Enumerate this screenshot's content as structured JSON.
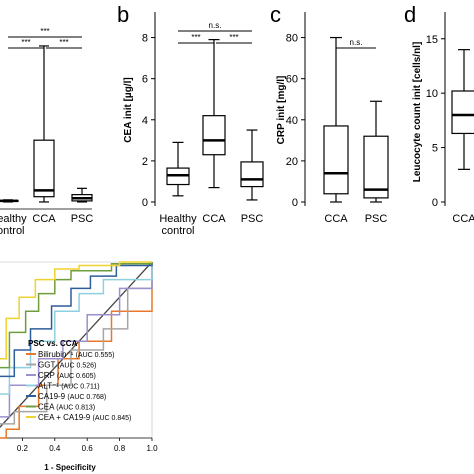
{
  "panels": {
    "a": {
      "x_labels": [
        "Healthy\ncontrol",
        "CCA",
        "PSC"
      ],
      "significance": [
        "***",
        "***",
        "***"
      ],
      "boxes": [
        {
          "group": "Healthy control",
          "whisker_low": 0.1,
          "q1": 0.15,
          "median": 0.2,
          "q3": 0.25,
          "whisker_high": 0.3
        },
        {
          "group": "CCA",
          "whisker_low": 0.1,
          "q1": 0.6,
          "median": 1.2,
          "q3": 6.0,
          "whisker_high": 15.0
        },
        {
          "group": "PSC",
          "whisker_low": 0.1,
          "q1": 0.2,
          "median": 0.45,
          "q3": 0.8,
          "whisker_high": 1.4
        }
      ]
    },
    "b": {
      "letter": "b",
      "ylabel": "CEA init [µg/l]",
      "y_ticks": [
        "0",
        "2",
        "4",
        "6",
        "8"
      ],
      "x_labels": [
        "Healthy\ncontrol",
        "CCA",
        "PSC"
      ],
      "significance": [
        "n.s.",
        "***",
        "***"
      ],
      "boxes": [
        {
          "group": "Healthy control",
          "whisker_low": 0.3,
          "q1": 0.85,
          "median": 1.3,
          "q3": 1.65,
          "whisker_high": 2.9
        },
        {
          "group": "CCA",
          "whisker_low": 0.7,
          "q1": 2.3,
          "median": 3.0,
          "q3": 4.2,
          "whisker_high": 7.9
        },
        {
          "group": "PSC",
          "whisker_low": 0.1,
          "q1": 0.75,
          "median": 1.1,
          "q3": 1.95,
          "whisker_high": 3.5
        }
      ]
    },
    "c": {
      "letter": "c",
      "ylabel": "CRP init [mg/l]",
      "y_ticks": [
        "0",
        "20",
        "40",
        "60",
        "80"
      ],
      "x_labels": [
        "CCA",
        "PSC"
      ],
      "significance": [
        "n.s."
      ],
      "boxes": [
        {
          "group": "CCA",
          "whisker_low": 0,
          "q1": 4,
          "median": 14,
          "q3": 37,
          "whisker_high": 80
        },
        {
          "group": "PSC",
          "whisker_low": 0,
          "q1": 2,
          "median": 6,
          "q3": 32,
          "whisker_high": 49
        }
      ]
    },
    "d": {
      "letter": "d",
      "ylabel": "Leucocyte count init [cells/nl]",
      "y_ticks": [
        "0",
        "5",
        "10",
        "15"
      ],
      "x_labels": [
        "CCA"
      ],
      "boxes": [
        {
          "group": "CCA",
          "whisker_low": 3.0,
          "q1": 6.3,
          "median": 8.0,
          "q3": 10.2,
          "whisker_high": 14.0
        }
      ]
    }
  },
  "roc": {
    "xlabel": "1 - Specificity",
    "x_ticks": [
      "0.2",
      "0.4",
      "0.6",
      "0.8",
      "1.0"
    ],
    "legend_title": "PSC vs. CCA",
    "colors": {
      "bilirubin": "#e8782a",
      "ggt": "#a6a6a6",
      "crp": "#9c8fd0",
      "alt": "#8fd0e0",
      "ca199": "#2e5d9c",
      "cea": "#6f9d3c",
      "cea_ca199": "#f0d22d",
      "reference": "#444444"
    },
    "legend": [
      {
        "key": "bilirubin",
        "name": "Bilirubin⁻¹",
        "auc": "(AUC 0.555)"
      },
      {
        "key": "ggt",
        "name": "GGT",
        "auc": "(AUC 0.526)"
      },
      {
        "key": "crp",
        "name": "CRP",
        "auc": "(AUC 0.605)"
      },
      {
        "key": "alt",
        "name": "ALT⁻¹",
        "auc": "(AUC 0.711)"
      },
      {
        "key": "ca199",
        "name": "CA19-9",
        "auc": "(AUC 0.768)"
      },
      {
        "key": "cea",
        "name": "CEA",
        "auc": "(AUC 0.813)"
      },
      {
        "key": "cea_ca199",
        "name": "CEA + CA19-9",
        "auc": "(AUC 0.845)"
      }
    ]
  },
  "chart_data": [
    {
      "type": "box",
      "panel": "a",
      "categories": [
        "Healthy control",
        "CCA",
        "PSC"
      ],
      "series": [
        {
          "group": "Healthy control",
          "whisker_low": 0.1,
          "q1": 0.15,
          "median": 0.2,
          "q3": 0.25,
          "whisker_high": 0.3
        },
        {
          "group": "CCA",
          "whisker_low": 0.1,
          "q1": 0.6,
          "median": 1.2,
          "q3": 6.0,
          "whisker_high": 15.0
        },
        {
          "group": "PSC",
          "whisker_low": 0.1,
          "q1": 0.2,
          "median": 0.45,
          "q3": 0.8,
          "whisker_high": 1.4
        }
      ]
    },
    {
      "type": "box",
      "panel": "b",
      "ylabel": "CEA init [µg/l]",
      "ylim": [
        0,
        9
      ],
      "categories": [
        "Healthy control",
        "CCA",
        "PSC"
      ],
      "series": [
        {
          "group": "Healthy control",
          "whisker_low": 0.3,
          "q1": 0.85,
          "median": 1.3,
          "q3": 1.65,
          "whisker_high": 2.9
        },
        {
          "group": "CCA",
          "whisker_low": 0.7,
          "q1": 2.3,
          "median": 3.0,
          "q3": 4.2,
          "whisker_high": 7.9
        },
        {
          "group": "PSC",
          "whisker_low": 0.1,
          "q1": 0.75,
          "median": 1.1,
          "q3": 1.95,
          "whisker_high": 3.5
        }
      ]
    },
    {
      "type": "box",
      "panel": "c",
      "ylabel": "CRP init [mg/l]",
      "ylim": [
        0,
        90
      ],
      "categories": [
        "CCA",
        "PSC"
      ],
      "series": [
        {
          "group": "CCA",
          "whisker_low": 0,
          "q1": 4,
          "median": 14,
          "q3": 37,
          "whisker_high": 80
        },
        {
          "group": "PSC",
          "whisker_low": 0,
          "q1": 2,
          "median": 6,
          "q3": 32,
          "whisker_high": 49
        }
      ]
    },
    {
      "type": "box",
      "panel": "d",
      "ylabel": "Leucocyte count init [cells/nl]",
      "ylim": [
        0,
        17
      ],
      "categories": [
        "CCA"
      ],
      "series": [
        {
          "group": "CCA",
          "whisker_low": 3.0,
          "q1": 6.3,
          "median": 8.0,
          "q3": 10.2,
          "whisker_high": 14.0
        }
      ]
    },
    {
      "type": "line",
      "panel": "roc",
      "xlabel": "1 - Specificity",
      "xlim": [
        0,
        1
      ],
      "ylim": [
        0,
        1
      ],
      "series": [
        {
          "name": "Bilirubin⁻¹ (AUC 0.555)",
          "x": [
            0.0,
            0.1,
            0.18,
            0.3,
            0.42,
            0.55,
            0.75,
            1.0
          ],
          "y": [
            0.0,
            0.05,
            0.18,
            0.3,
            0.45,
            0.55,
            0.72,
            1.0
          ]
        },
        {
          "name": "GGT (AUC 0.526)",
          "x": [
            0.0,
            0.05,
            0.15,
            0.35,
            0.5,
            0.7,
            0.85,
            1.0
          ],
          "y": [
            0.0,
            0.08,
            0.15,
            0.3,
            0.5,
            0.62,
            0.85,
            1.0
          ]
        },
        {
          "name": "CRP (AUC 0.605)",
          "x": [
            0.0,
            0.05,
            0.12,
            0.3,
            0.45,
            0.6,
            0.8,
            1.0
          ],
          "y": [
            0.0,
            0.12,
            0.3,
            0.45,
            0.55,
            0.7,
            0.85,
            1.0
          ]
        },
        {
          "name": "ALT⁻¹ (AUC 0.711)",
          "x": [
            0.0,
            0.05,
            0.12,
            0.25,
            0.4,
            0.55,
            0.7,
            1.0
          ],
          "y": [
            0.0,
            0.25,
            0.4,
            0.55,
            0.72,
            0.82,
            0.9,
            1.0
          ]
        },
        {
          "name": "CA19-9 (AUC 0.768)",
          "x": [
            0.0,
            0.05,
            0.15,
            0.25,
            0.38,
            0.5,
            0.62,
            0.78,
            1.0
          ],
          "y": [
            0.0,
            0.35,
            0.5,
            0.62,
            0.75,
            0.85,
            0.92,
            0.98,
            1.0
          ]
        },
        {
          "name": "CEA (AUC 0.813)",
          "x": [
            0.0,
            0.05,
            0.12,
            0.22,
            0.3,
            0.4,
            0.5,
            0.75,
            1.0
          ],
          "y": [
            0.0,
            0.4,
            0.6,
            0.72,
            0.82,
            0.9,
            0.95,
            0.99,
            1.0
          ]
        },
        {
          "name": "CEA + CA19-9 (AUC 0.845)",
          "x": [
            0.0,
            0.04,
            0.1,
            0.18,
            0.28,
            0.4,
            0.55,
            0.8,
            1.0
          ],
          "y": [
            0.0,
            0.45,
            0.68,
            0.8,
            0.9,
            0.96,
            0.98,
            1.0,
            1.0
          ]
        }
      ]
    }
  ]
}
